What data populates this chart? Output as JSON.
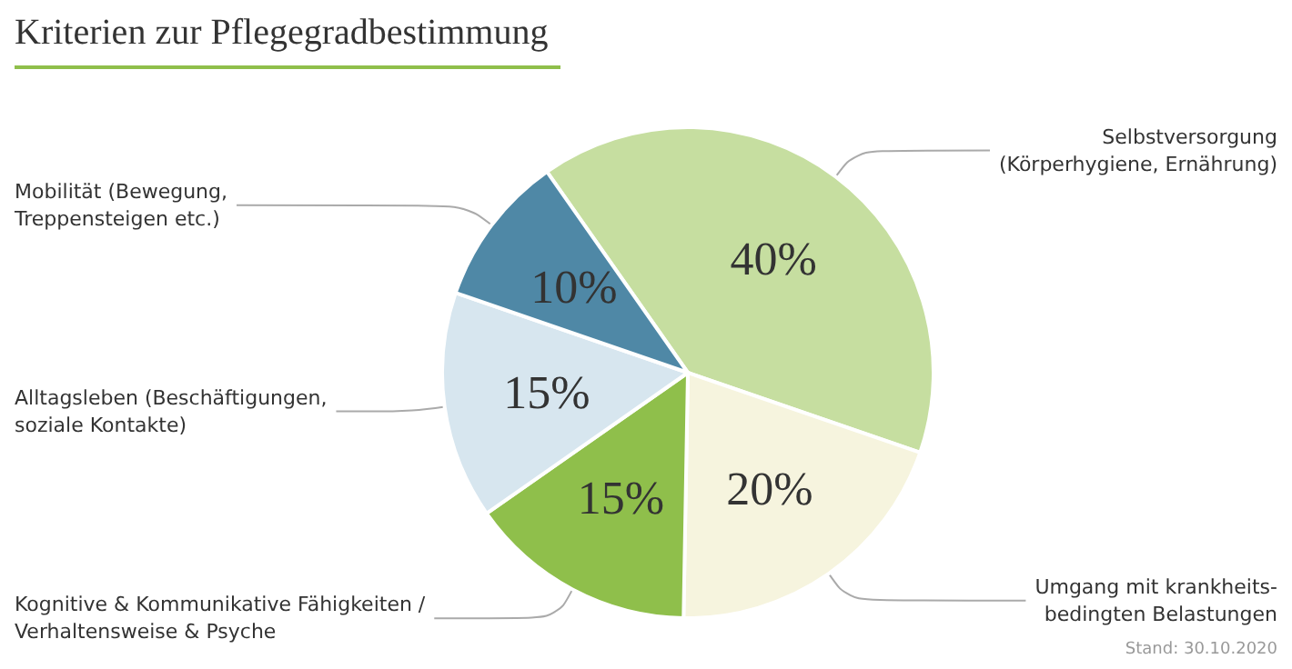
{
  "chart_data": {
    "type": "pie",
    "title": "Kriterien zur Pflegegradbestimmung",
    "categories": [
      "Selbstversorgung\n(Körperhygiene, Ernährung)",
      "Umgang mit krankheits-\nbedingten Belastungen",
      "Kognitive & Kommunikative Fähigkeiten /\nVerhaltensweise & Psyche",
      "Alltagsleben (Beschäftigungen,\nsoziale Kontakte)",
      "Mobilität (Bewegung,\nTreppensteigen etc.)"
    ],
    "values": [
      40,
      20,
      15,
      15,
      10
    ],
    "value_labels": [
      "40%",
      "20%",
      "15%",
      "15%",
      "10%"
    ],
    "colors": [
      "#c6dea0",
      "#f6f4de",
      "#8fbf4b",
      "#d7e6ef",
      "#4f88a6"
    ],
    "legend": false,
    "annotations": [
      "Stand: 30.10.2020"
    ]
  }
}
